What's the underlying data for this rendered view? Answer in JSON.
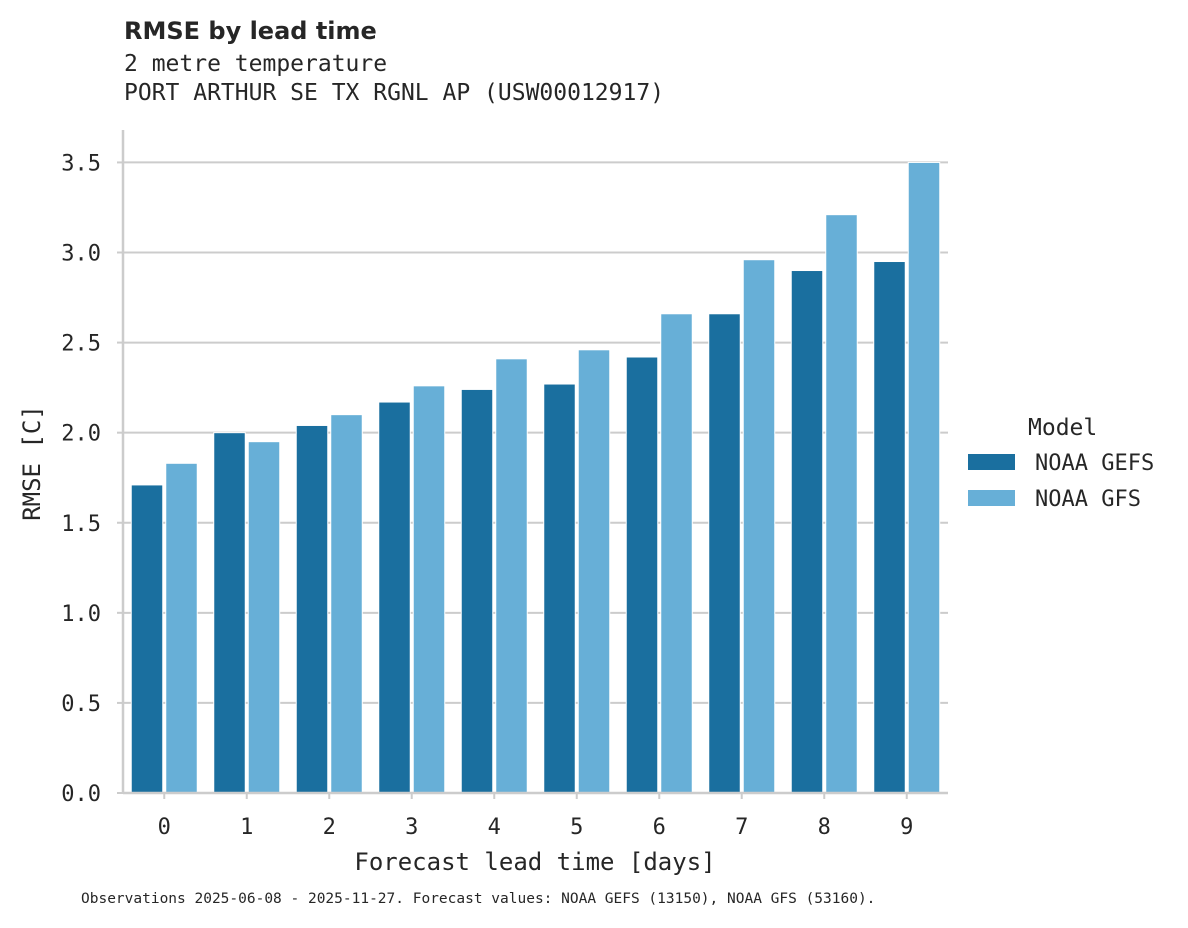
{
  "chart_data": {
    "type": "bar",
    "title": "RMSE by lead time",
    "subtitle": [
      "2 metre temperature",
      "PORT ARTHUR SE TX RGNL AP (USW00012917)"
    ],
    "xlabel": "Forecast lead time [days]",
    "ylabel": "RMSE [C]",
    "categories": [
      "0",
      "1",
      "2",
      "3",
      "4",
      "5",
      "6",
      "7",
      "8",
      "9"
    ],
    "series": [
      {
        "name": "NOAA GEFS",
        "color": "#1a6f9f",
        "values": [
          1.71,
          2.0,
          2.04,
          2.17,
          2.24,
          2.27,
          2.42,
          2.66,
          2.9,
          2.95
        ]
      },
      {
        "name": "NOAA GFS",
        "color": "#67afd7",
        "values": [
          1.83,
          1.95,
          2.1,
          2.26,
          2.41,
          2.46,
          2.66,
          2.96,
          3.21,
          3.5
        ]
      }
    ],
    "ylim": [
      0,
      3.68
    ],
    "yticks": [
      "0.0",
      "0.5",
      "1.0",
      "1.5",
      "2.0",
      "2.5",
      "3.0",
      "3.5"
    ],
    "grid": "y",
    "legend": {
      "title": "Model",
      "placement": "right"
    },
    "footnote": "Observations 2025-06-08 - 2025-11-27. Forecast values: NOAA GEFS (13150), NOAA GFS (53160)."
  }
}
